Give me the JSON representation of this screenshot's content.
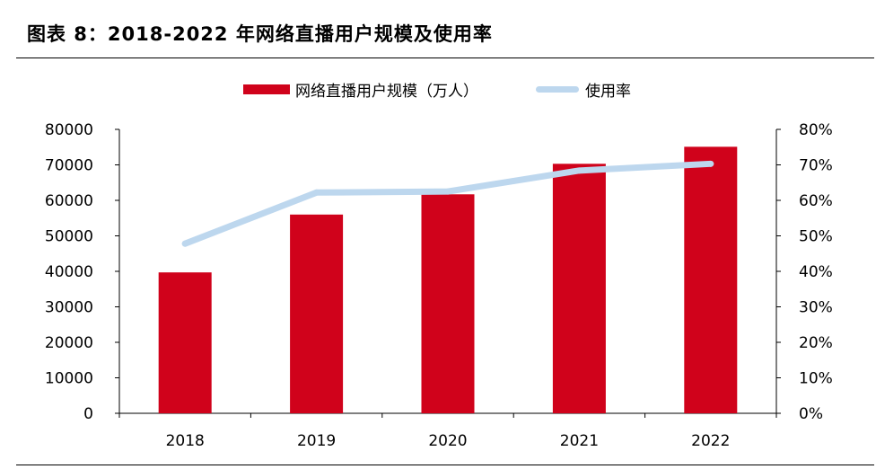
{
  "title": "图表 8：2018-2022 年网络直播用户规模及使用率",
  "chart_data": {
    "type": "bar",
    "categories": [
      "2018",
      "2019",
      "2020",
      "2021",
      "2022"
    ],
    "series": [
      {
        "name": "网络直播用户规模（万人）",
        "type": "bar",
        "axis": "left",
        "color": "#d0021b",
        "values": [
          39700,
          56000,
          61700,
          70300,
          75100
        ]
      },
      {
        "name": "使用率",
        "type": "line",
        "axis": "right",
        "color": "#bdd7ee",
        "values": [
          0.478,
          0.622,
          0.625,
          0.684,
          0.703
        ]
      }
    ],
    "left_axis": {
      "ylim": [
        0,
        80000
      ],
      "ticks": [
        "0",
        "10000",
        "20000",
        "30000",
        "40000",
        "50000",
        "60000",
        "70000",
        "80000"
      ]
    },
    "right_axis": {
      "ylim": [
        0,
        0.8
      ],
      "ticks": [
        "0%",
        "10%",
        "20%",
        "30%",
        "40%",
        "50%",
        "60%",
        "70%",
        "80%"
      ]
    },
    "legend_position": "top-center",
    "grid": false
  }
}
